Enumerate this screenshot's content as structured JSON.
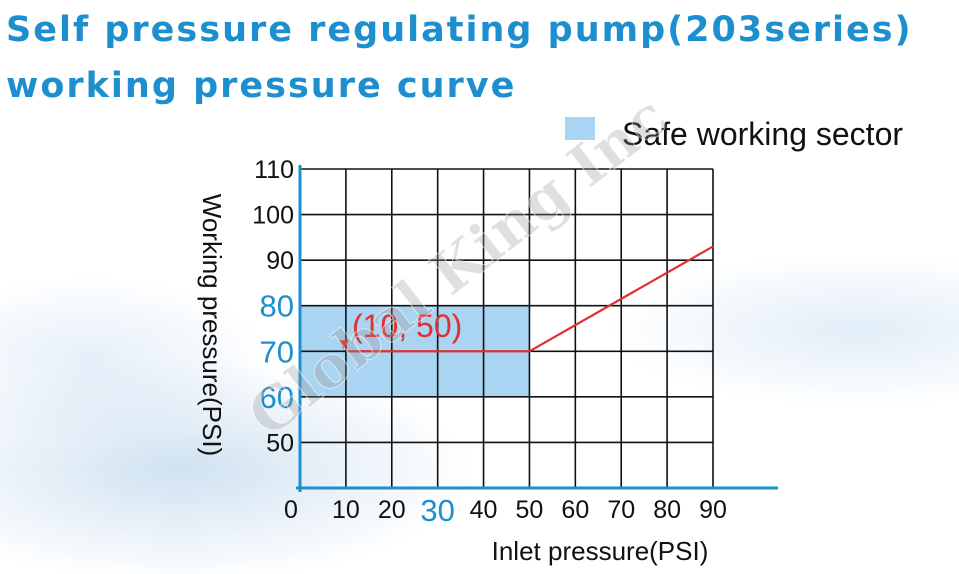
{
  "title_line1": "Self pressure regulating pump(203series)",
  "title_line2": "working pressure curve",
  "watermark": "Global King Inc",
  "colors": {
    "title": "#1e8fce",
    "axis": "#1e8fce",
    "grid": "#111111",
    "safe_sector": "#a9d5f2",
    "curve": "#e03030",
    "highlight_tick": "#1e8fce"
  },
  "chart_data": {
    "type": "line",
    "xlabel": "Inlet  pressure(PSI)",
    "ylabel": "Working pressure(PSI)",
    "xlim": [
      0,
      90
    ],
    "ylim": [
      40,
      110
    ],
    "x_ticks": [
      "0",
      "10",
      "20",
      "30",
      "40",
      "50",
      "60",
      "70",
      "80",
      "90"
    ],
    "y_ticks": [
      "50",
      "60",
      "70",
      "80",
      "90",
      "100",
      "110"
    ],
    "highlighted_x_ticks": [
      "30"
    ],
    "highlighted_y_ticks": [
      "60",
      "70",
      "80"
    ],
    "grid": true,
    "legend": {
      "position": "top-right",
      "label": "Safe working sector"
    },
    "safe_sector": {
      "x": [
        0,
        50
      ],
      "y": [
        60,
        80
      ]
    },
    "series": [
      {
        "x": [
          10,
          50,
          90
        ],
        "y": [
          70,
          70,
          93
        ]
      }
    ],
    "annotation": {
      "text": "(10,  50)",
      "x": 10,
      "y": 70
    }
  }
}
